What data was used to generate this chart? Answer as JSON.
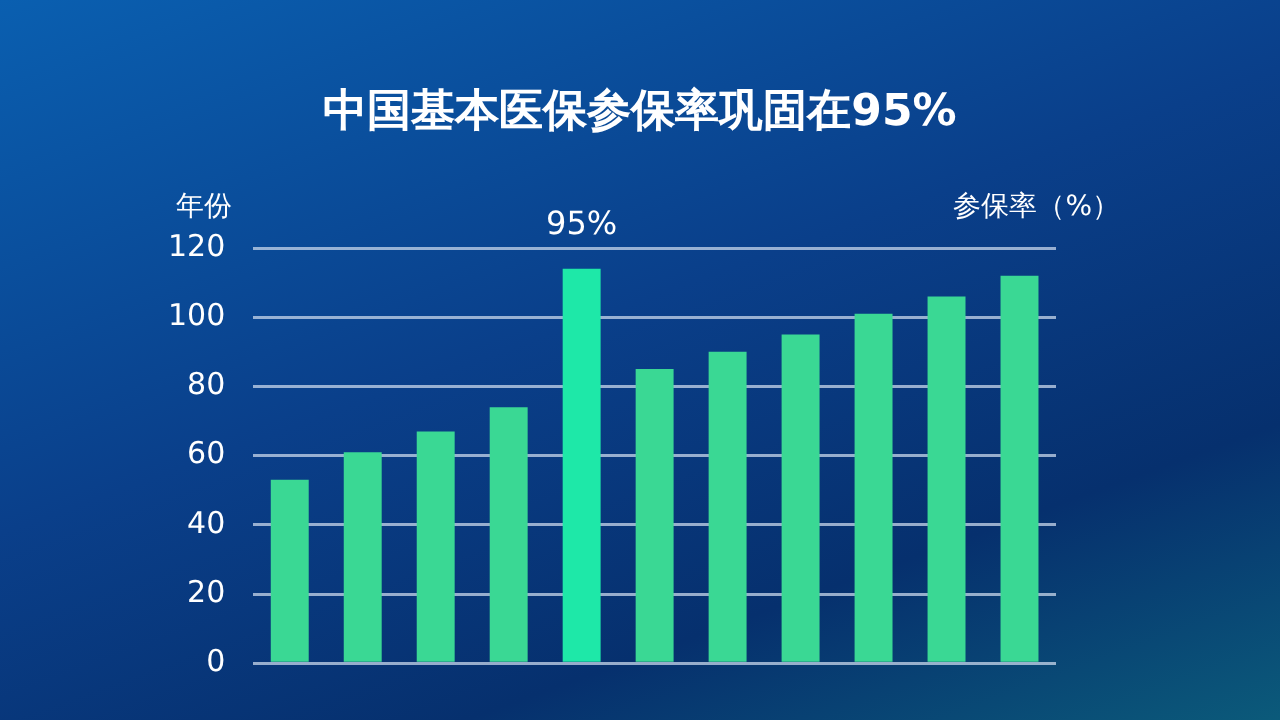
{
  "chart_data": {
    "type": "bar",
    "title": "中国基本医保参保率巩固在95%",
    "ylabel": "年份",
    "annotations": [
      {
        "text": "95%",
        "y": 114
      },
      "参保率（%）"
    ],
    "categories": [
      null,
      null,
      null,
      null,
      null,
      null,
      null,
      null,
      null,
      null,
      null
    ],
    "values": [
      53,
      61,
      67,
      74,
      114,
      85,
      90,
      95,
      101,
      106,
      112
    ],
    "colors": [
      "#3ad894",
      "#3ad894",
      "#3ad894",
      "#3ad894",
      "#1ee8a8",
      "#3ad894",
      "#3ad894",
      "#3ad894",
      "#3ad894",
      "#3ad894",
      "#3ad894"
    ],
    "ylim": [
      0,
      120
    ],
    "yticks": [
      0,
      20,
      40,
      60,
      80,
      100,
      120
    ],
    "grid": "y",
    "legend": false
  }
}
